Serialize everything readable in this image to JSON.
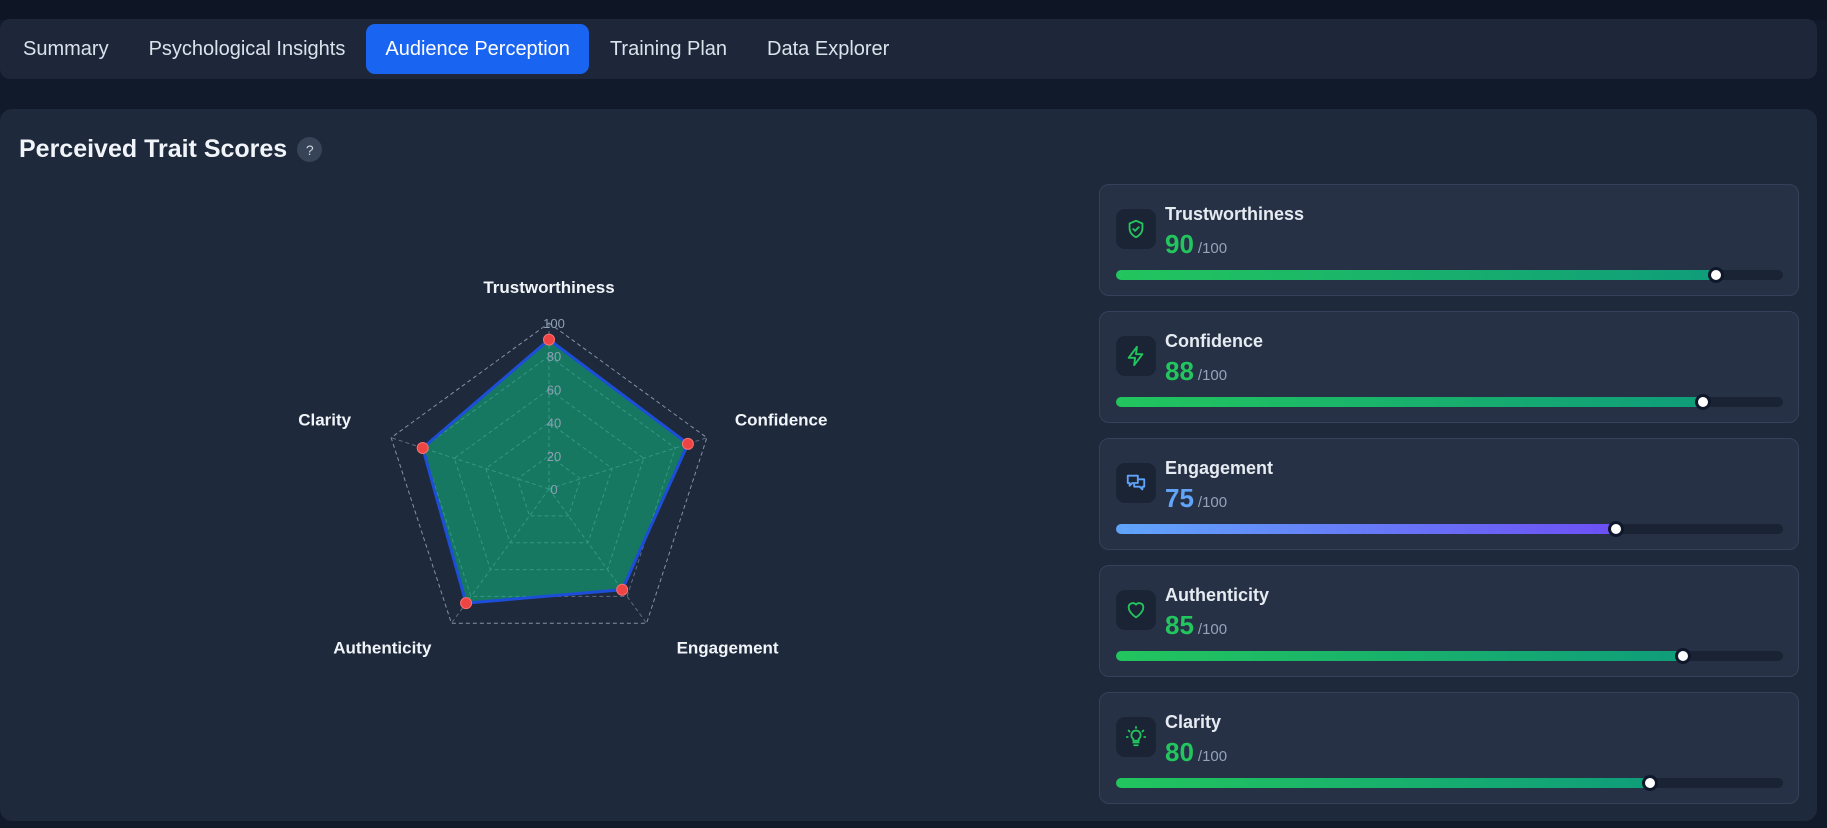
{
  "tabs": [
    {
      "label": "Summary",
      "active": false
    },
    {
      "label": "Psychological Insights",
      "active": false
    },
    {
      "label": "Audience Perception",
      "active": true
    },
    {
      "label": "Training Plan",
      "active": false
    },
    {
      "label": "Data Explorer",
      "active": false
    }
  ],
  "panel": {
    "title": "Perceived Trait Scores",
    "help_glyph": "?"
  },
  "chart_data": {
    "type": "radar",
    "axes": [
      "Trustworthiness",
      "Confidence",
      "Engagement",
      "Authenticity",
      "Clarity"
    ],
    "values": [
      90,
      88,
      75,
      85,
      80
    ],
    "range": [
      0,
      100
    ],
    "ticks": [
      "0",
      "20",
      "40",
      "60",
      "80",
      "100"
    ],
    "colors": {
      "fill": "#10b981",
      "stroke": "#1d4ed8",
      "point": "#ef4444"
    }
  },
  "traits": [
    {
      "name": "Trustworthiness",
      "score": "90",
      "max": "/100",
      "level": 0.9,
      "icon": "shield-check-icon",
      "color": "#22c55e"
    },
    {
      "name": "Confidence",
      "score": "88",
      "max": "/100",
      "level": 0.88,
      "icon": "lightning-icon",
      "color": "#22c55e"
    },
    {
      "name": "Engagement",
      "score": "75",
      "max": "/100",
      "level": 0.75,
      "icon": "chat-bubbles-icon",
      "color": "#60a5fa"
    },
    {
      "name": "Authenticity",
      "score": "85",
      "max": "/100",
      "level": 0.85,
      "icon": "heart-icon",
      "color": "#22c55e"
    },
    {
      "name": "Clarity",
      "score": "80",
      "max": "/100",
      "level": 0.8,
      "icon": "lightbulb-icon",
      "color": "#22c55e"
    }
  ]
}
